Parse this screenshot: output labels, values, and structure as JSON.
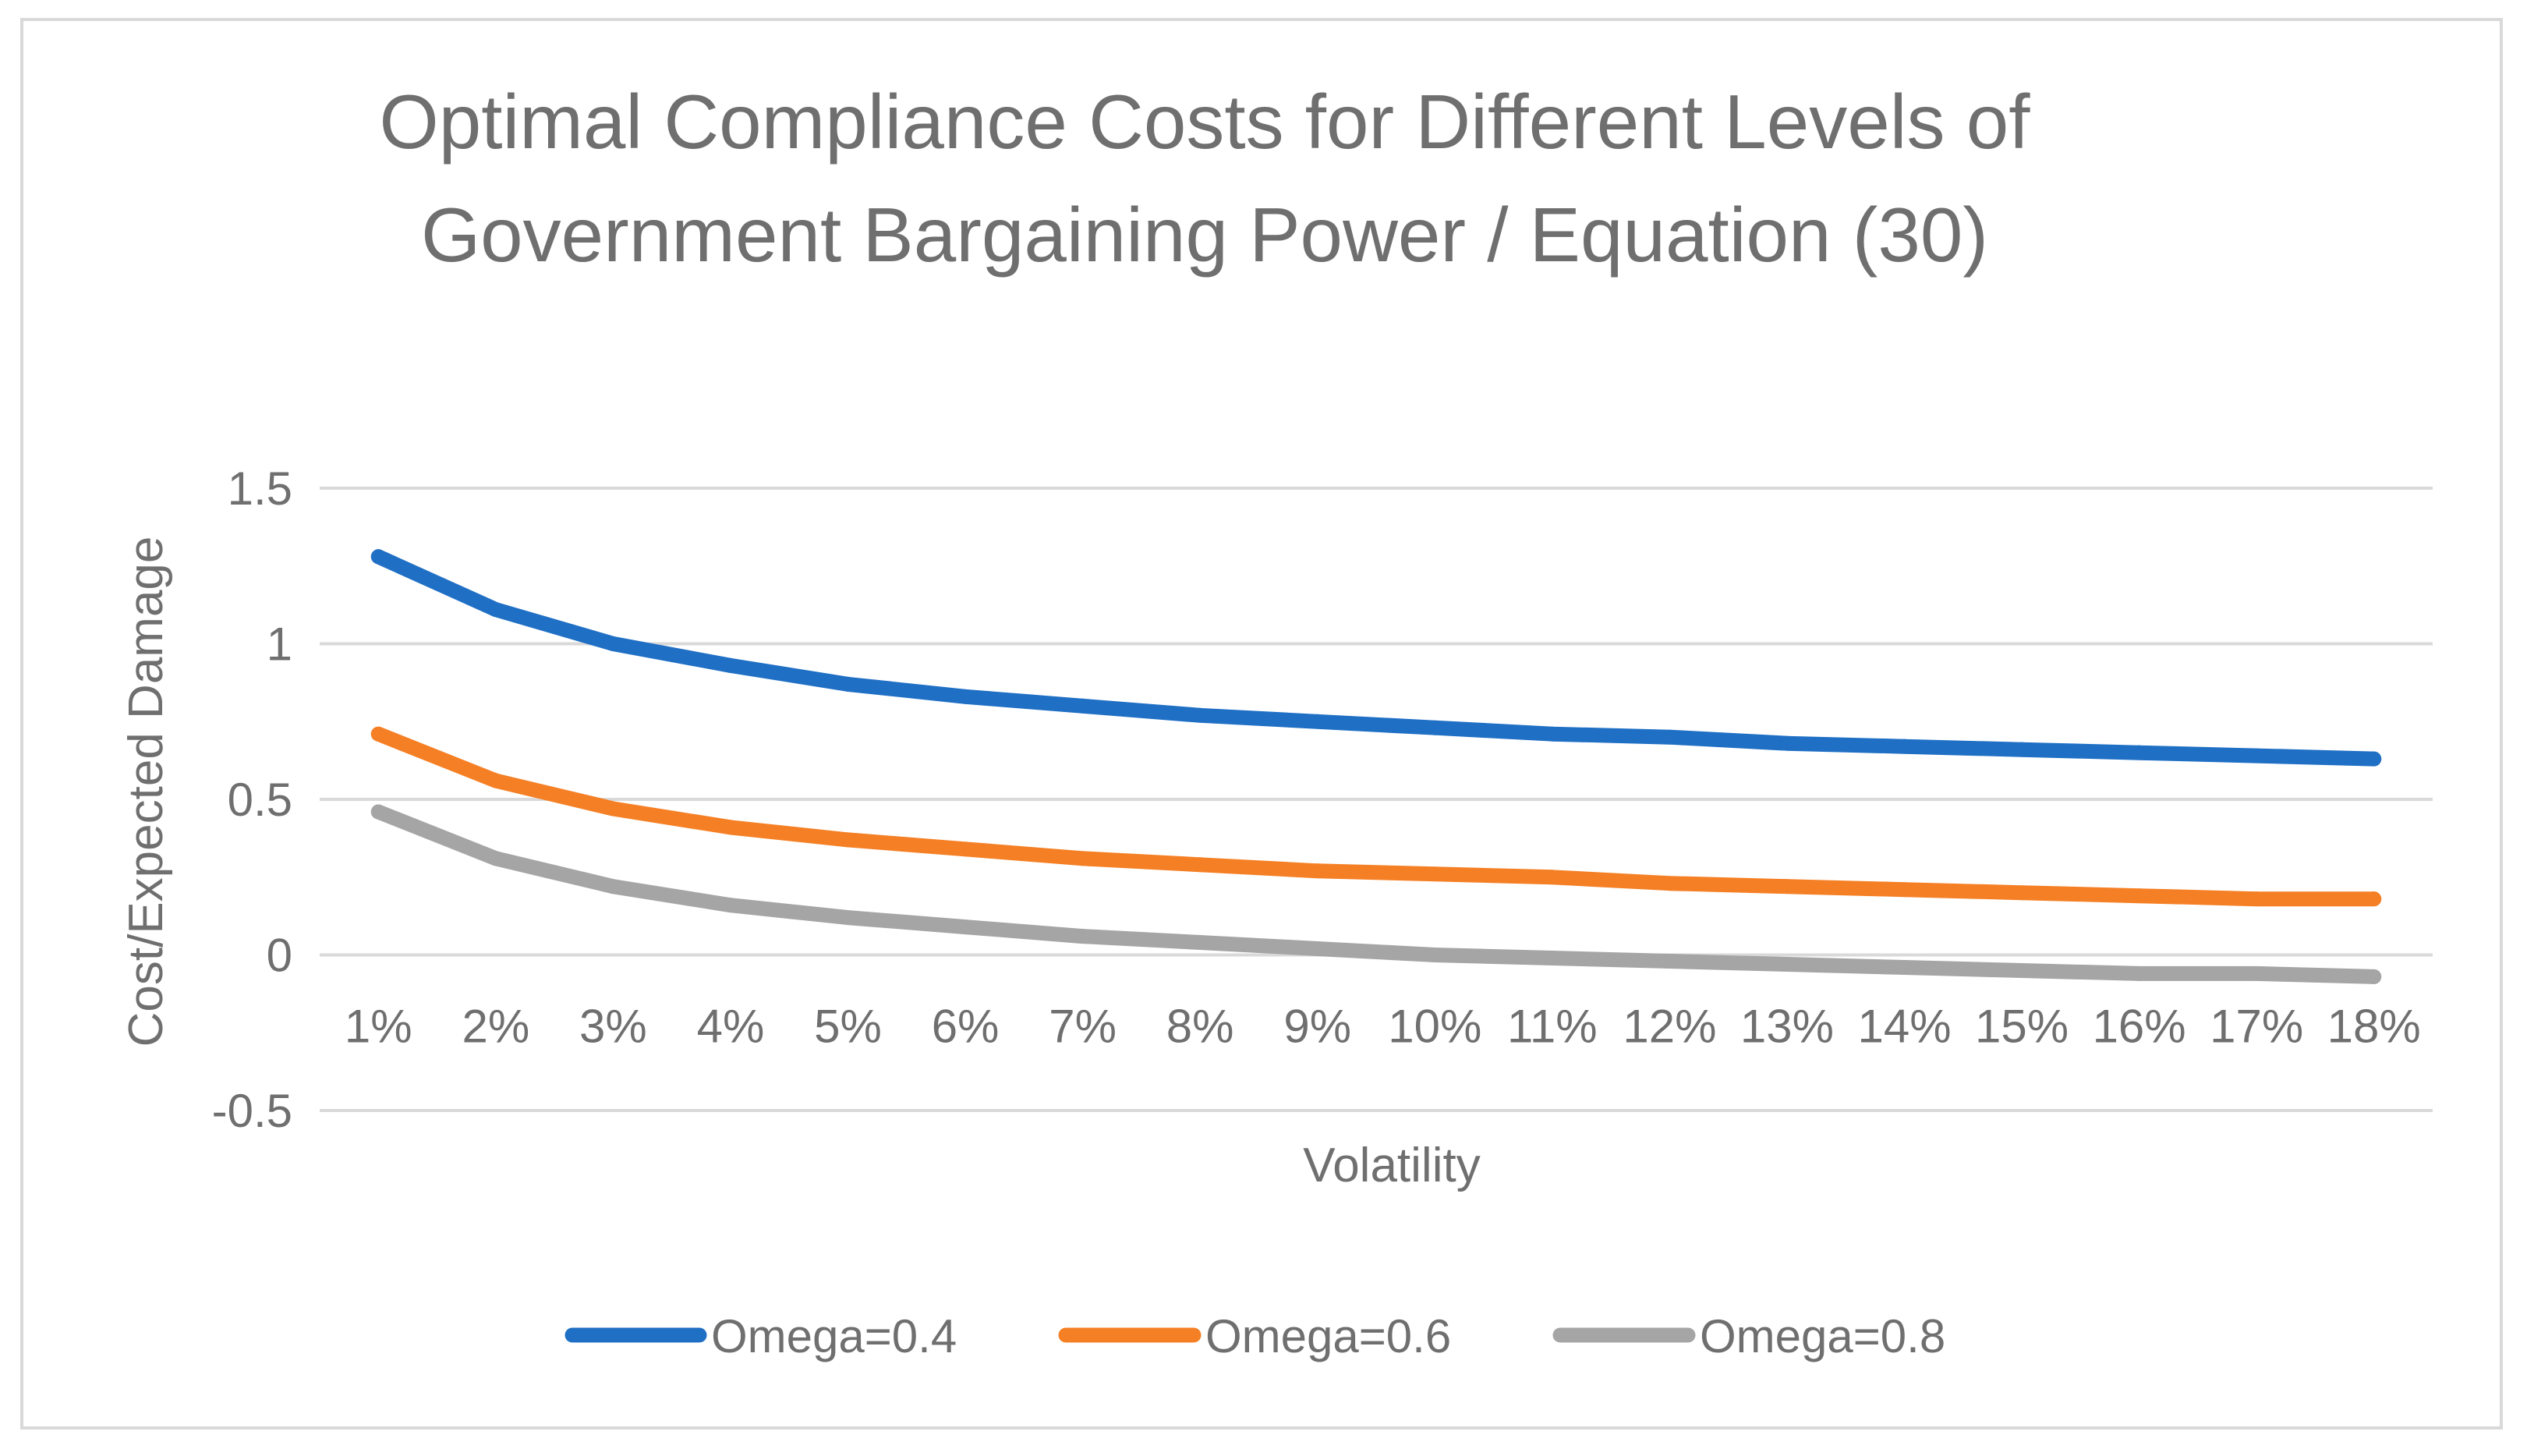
{
  "colors": {
    "background": "#ffffff",
    "border": "#d9d9d9",
    "gridline": "#d9d9d9",
    "text": "#6f6f6f",
    "series": [
      "#1f6fc5",
      "#f57f24",
      "#a5a5a5"
    ]
  },
  "chart_data": {
    "type": "line",
    "title_lines": [
      "Optimal Compliance Costs for Different Levels of",
      "Government Bargaining Power / Equation (30)"
    ],
    "xlabel": "Volatility",
    "ylabel": "Cost/Expected Damage",
    "ylim": [
      -0.5,
      1.5
    ],
    "ytick_labels": [
      "-0.5",
      "0",
      "0.5",
      "1",
      "1.5"
    ],
    "categories": [
      "1%",
      "2%",
      "3%",
      "4%",
      "5%",
      "6%",
      "7%",
      "8%",
      "9%",
      "10%",
      "11%",
      "12%",
      "13%",
      "14%",
      "15%",
      "16%",
      "17%",
      "18%"
    ],
    "grid": true,
    "legend_position": "bottom",
    "series": [
      {
        "name": "Omega=0.4",
        "values": [
          1.28,
          1.11,
          1.0,
          0.93,
          0.87,
          0.83,
          0.8,
          0.77,
          0.75,
          0.73,
          0.71,
          0.7,
          0.68,
          0.67,
          0.66,
          0.65,
          0.64,
          0.63
        ]
      },
      {
        "name": "Omega=0.6",
        "values": [
          0.71,
          0.56,
          0.47,
          0.41,
          0.37,
          0.34,
          0.31,
          0.29,
          0.27,
          0.26,
          0.25,
          0.23,
          0.22,
          0.21,
          0.2,
          0.19,
          0.18,
          0.18
        ]
      },
      {
        "name": "Omega=0.8",
        "values": [
          0.46,
          0.31,
          0.22,
          0.16,
          0.12,
          0.09,
          0.06,
          0.04,
          0.02,
          0.0,
          -0.01,
          -0.02,
          -0.03,
          -0.04,
          -0.05,
          -0.06,
          -0.06,
          -0.07
        ]
      }
    ]
  }
}
